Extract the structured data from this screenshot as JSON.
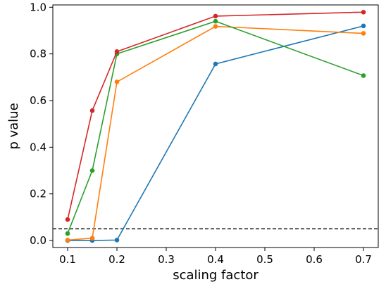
{
  "chart_data": {
    "type": "line",
    "xlabel": "scaling factor",
    "ylabel": "p value",
    "xlim": [
      0.07,
      0.73
    ],
    "ylim": [
      -0.03,
      1.01
    ],
    "xticks": [
      0.1,
      0.2,
      0.3,
      0.4,
      0.5,
      0.6,
      0.7
    ],
    "yticks": [
      0.0,
      0.2,
      0.4,
      0.6,
      0.8,
      1.0
    ],
    "xtick_labels": [
      "0.1",
      "0.2",
      "0.3",
      "0.4",
      "0.5",
      "0.6",
      "0.7"
    ],
    "ytick_labels": [
      "0.0",
      "0.2",
      "0.4",
      "0.6",
      "0.8",
      "1.0"
    ],
    "x": [
      0.1,
      0.15,
      0.2,
      0.4,
      0.7
    ],
    "threshold": 0.05,
    "grid": false,
    "series": [
      {
        "color": "#1f77b4",
        "values": [
          0.0,
          0.0,
          0.002,
          0.757,
          0.92
        ]
      },
      {
        "color": "#ff7f0e",
        "values": [
          0.002,
          0.01,
          0.68,
          0.918,
          0.888
        ]
      },
      {
        "color": "#2ca02c",
        "values": [
          0.03,
          0.3,
          0.8,
          0.94,
          0.707
        ]
      },
      {
        "color": "#d62728",
        "values": [
          0.09,
          0.557,
          0.81,
          0.962,
          0.979
        ]
      }
    ]
  }
}
